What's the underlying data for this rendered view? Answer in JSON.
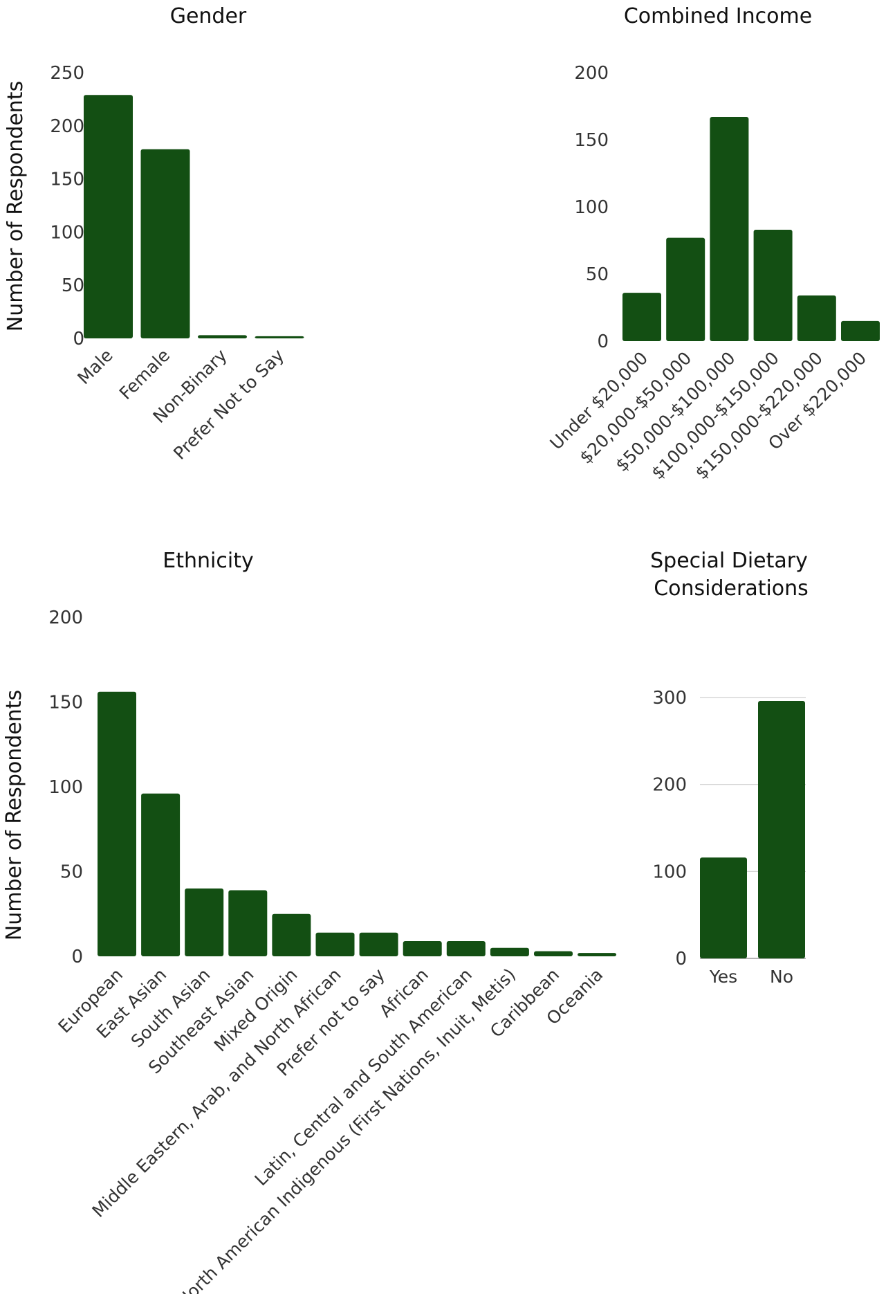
{
  "chart_data": [
    {
      "id": "gender",
      "type": "bar",
      "title": "Gender",
      "ylabel": "Number of Respondents",
      "categories": [
        "Male",
        "Female",
        "Non-Binary",
        "Prefer Not to Say"
      ],
      "values": [
        229,
        178,
        3,
        2
      ],
      "ylim": [
        0,
        250
      ],
      "yticks": [
        0,
        50,
        100,
        150,
        200,
        250
      ],
      "grid": false,
      "color": "#134f13"
    },
    {
      "id": "income",
      "type": "bar",
      "title": "Combined Income",
      "ylabel": "",
      "categories": [
        "Under $20,000",
        "$20,000-$50,000",
        "$50,000-$100,000",
        "$100,000-$150,000",
        "$150,000-$220,000",
        "Over $220,000"
      ],
      "values": [
        36,
        77,
        167,
        83,
        34,
        15
      ],
      "ylim": [
        0,
        200
      ],
      "yticks": [
        0,
        50,
        100,
        150,
        200
      ],
      "grid": false,
      "color": "#134f13"
    },
    {
      "id": "ethnicity",
      "type": "bar",
      "title": "Ethnicity",
      "ylabel": "Number of Respondents",
      "categories": [
        "European",
        "East Asian",
        "South Asian",
        "Southeast Asian",
        "Mixed Origin",
        "Middle Eastern, Arab, and North African",
        "Prefer not to say",
        "African",
        "Latin, Central and South American",
        "North American Indigenous (First Nations, Inuit, Metis)",
        "Caribbean",
        "Oceania"
      ],
      "values": [
        156,
        96,
        40,
        39,
        25,
        14,
        14,
        9,
        9,
        5,
        3,
        2
      ],
      "ylim": [
        0,
        200
      ],
      "yticks": [
        0,
        50,
        100,
        150,
        200
      ],
      "grid": false,
      "color": "#134f13"
    },
    {
      "id": "dietary",
      "type": "bar",
      "title": [
        "Special Dietary",
        "Considerations"
      ],
      "ylabel": "",
      "categories": [
        "Yes",
        "No"
      ],
      "values": [
        116,
        296
      ],
      "ylim": [
        0,
        300
      ],
      "yticks": [
        0,
        100,
        200,
        300
      ],
      "grid": true,
      "color": "#134f13"
    }
  ]
}
